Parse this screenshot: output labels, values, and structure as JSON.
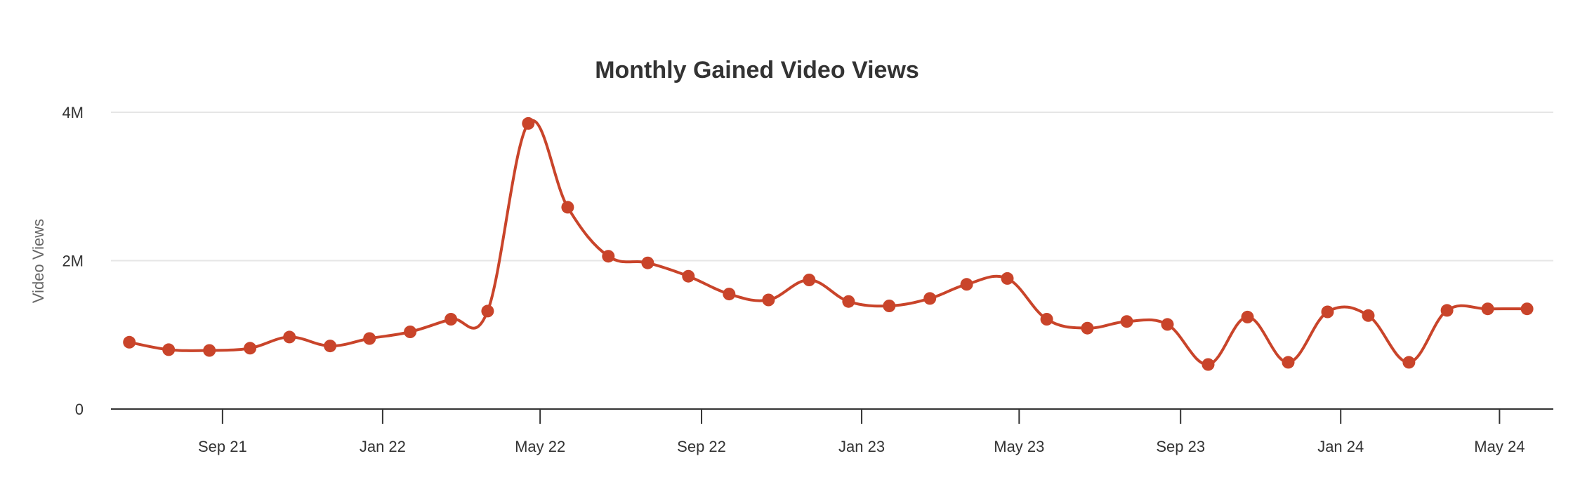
{
  "chart_data": {
    "type": "line",
    "title": "Monthly Gained Video Views",
    "xlabel": "",
    "ylabel": "Video Views",
    "ylim": [
      0,
      4000000
    ],
    "y_ticks": [
      {
        "value": 0,
        "label": "0"
      },
      {
        "value": 2000000,
        "label": "2M"
      },
      {
        "value": 4000000,
        "label": "4M"
      }
    ],
    "x_ticks": [
      {
        "value": "2021-09",
        "label": "Sep 21"
      },
      {
        "value": "2022-01",
        "label": "Jan 22"
      },
      {
        "value": "2022-05",
        "label": "May 22"
      },
      {
        "value": "2022-09",
        "label": "Sep 22"
      },
      {
        "value": "2023-01",
        "label": "Jan 23"
      },
      {
        "value": "2023-05",
        "label": "May 23"
      },
      {
        "value": "2023-09",
        "label": "Sep 23"
      },
      {
        "value": "2024-01",
        "label": "Jan 24"
      },
      {
        "value": "2024-05",
        "label": "May 24"
      }
    ],
    "grid": true,
    "legend": false,
    "color": "#c9442a",
    "x": [
      "2021-06-22",
      "2021-07-22",
      "2021-08-22",
      "2021-09-22",
      "2021-10-22",
      "2021-11-22",
      "2021-12-22",
      "2022-01-22",
      "2022-02-22",
      "2022-03-22",
      "2022-04-22",
      "2022-05-22",
      "2022-06-22",
      "2022-07-22",
      "2022-08-22",
      "2022-09-22",
      "2022-10-22",
      "2022-11-22",
      "2022-12-22",
      "2023-01-22",
      "2023-02-22",
      "2023-03-22",
      "2023-04-22",
      "2023-05-22",
      "2023-06-22",
      "2023-07-22",
      "2023-08-22",
      "2023-09-22",
      "2023-10-22",
      "2023-11-22",
      "2023-12-22",
      "2024-01-22",
      "2024-02-22",
      "2024-03-22",
      "2024-04-22",
      "2024-05-22"
    ],
    "values": [
      900000,
      800000,
      790000,
      820000,
      970000,
      850000,
      950000,
      1040000,
      1210000,
      1320000,
      3850000,
      2720000,
      2060000,
      1970000,
      1790000,
      1550000,
      1470000,
      1740000,
      1450000,
      1390000,
      1490000,
      1680000,
      1760000,
      1210000,
      1090000,
      1180000,
      1140000,
      600000,
      1240000,
      630000,
      1310000,
      1260000,
      630000,
      1330000,
      1350000,
      1350000
    ]
  }
}
